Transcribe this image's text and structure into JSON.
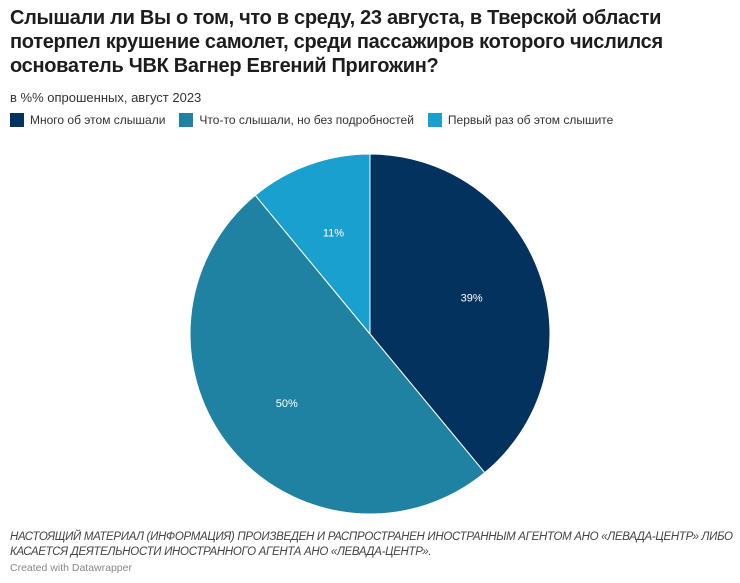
{
  "title": "Слышали ли Вы о том, что в среду, 23 августа, в Тверской области потерпел крушение самолет, среди пассажиров которого числился основатель ЧВК Вагнер Евгений Пригожин?",
  "subtitle": "в %% опрошенных, август 2023",
  "chart_data": {
    "type": "pie",
    "categories": [
      "Много об этом слышали",
      "Что-то слышали, но без подробностей",
      "Первый раз об этом слышите"
    ],
    "values": [
      39,
      50,
      11
    ],
    "labels": [
      "39%",
      "50%",
      "11%"
    ],
    "colors": [
      "#04325f",
      "#1f82a2",
      "#1aa0cf"
    ],
    "legend": "top-left"
  },
  "note": "НАСТОЯЩИЙ МАТЕРИАЛ (ИНФОРМАЦИЯ) ПРОИЗВЕДЕН И РАСПРОСТРАНЕН ИНОСТРАННЫМ АГЕНТОМ АНО «ЛЕВАДА-ЦЕНТР» ЛИБО КАСАЕТСЯ ДЕЯТЕЛЬНОСТИ ИНОСТРАННОГО АГЕНТА АНО «ЛЕВАДА-ЦЕНТР».",
  "credit": "Created with Datawrapper"
}
